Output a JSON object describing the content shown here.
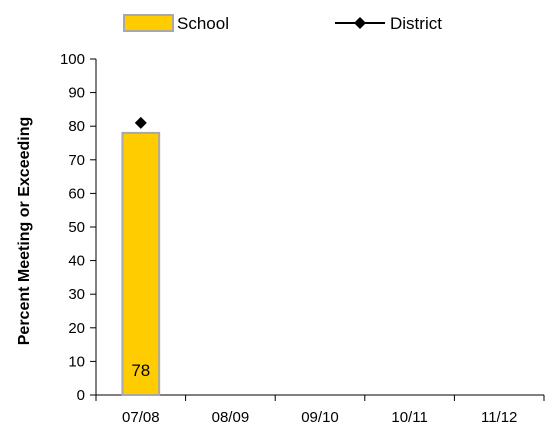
{
  "chart_data": {
    "type": "bar",
    "title": "",
    "xlabel": "",
    "ylabel": "Percent Meeting or Exceeding",
    "categories": [
      "07/08",
      "08/09",
      "09/10",
      "10/11",
      "11/12"
    ],
    "ylim": [
      0,
      100
    ],
    "yticks": [
      0,
      10,
      20,
      30,
      40,
      50,
      60,
      70,
      80,
      90,
      100
    ],
    "grid": false,
    "legend_position": "top",
    "series": [
      {
        "name": "School",
        "type": "bar",
        "values": [
          78,
          null,
          null,
          null,
          null
        ],
        "data_labels": [
          "78",
          null,
          null,
          null,
          null
        ],
        "color": "#FFCC00",
        "border_color": "#A8A8A8"
      },
      {
        "name": "District",
        "type": "line",
        "marker": "diamond",
        "values": [
          81,
          null,
          null,
          null,
          null
        ],
        "color": "#000000"
      }
    ]
  }
}
